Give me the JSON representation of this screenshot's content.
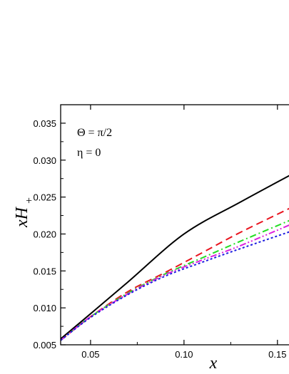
{
  "chart_data": {
    "type": "line",
    "xlabel_main": "x",
    "ylabel_main": "xH",
    "ylabel_sub": "+",
    "xlim": [
      0.034,
      0.16
    ],
    "ylim": [
      0.005,
      0.0375
    ],
    "x_ticks": [
      0.05,
      0.1,
      0.15
    ],
    "x_tick_labels": [
      "0.05",
      "0.10",
      "0.15"
    ],
    "y_ticks": [
      0.005,
      0.01,
      0.015,
      0.02,
      0.025,
      0.03,
      0.035
    ],
    "y_tick_labels": [
      "0.005",
      "0.010",
      "0.015",
      "0.020",
      "0.025",
      "0.030",
      "0.035"
    ],
    "annotations": [
      "Θ = π/2",
      "η = 0"
    ],
    "series": [
      {
        "color": "#000000",
        "dash": "solid",
        "x": [
          0.034,
          0.05,
          0.07,
          0.1,
          0.13,
          0.16
        ],
        "y": [
          0.0058,
          0.0092,
          0.0135,
          0.02,
          0.0243,
          0.0284
        ]
      },
      {
        "color": "#e8141e",
        "dash": "dash",
        "x": [
          0.034,
          0.05,
          0.07,
          0.09,
          0.11,
          0.13,
          0.16
        ],
        "y": [
          0.0056,
          0.0088,
          0.0122,
          0.0148,
          0.0175,
          0.0202,
          0.0239
        ]
      },
      {
        "color": "#22dd22",
        "dash": "dashdot",
        "x": [
          0.034,
          0.05,
          0.07,
          0.09,
          0.11,
          0.13,
          0.16
        ],
        "y": [
          0.0056,
          0.0088,
          0.012,
          0.0146,
          0.0168,
          0.019,
          0.0222
        ]
      },
      {
        "color": "#dd22dd",
        "dash": "dashdotdot",
        "x": [
          0.034,
          0.05,
          0.07,
          0.09,
          0.11,
          0.13,
          0.16
        ],
        "y": [
          0.0056,
          0.0088,
          0.0119,
          0.0145,
          0.0165,
          0.0184,
          0.0216
        ]
      },
      {
        "color": "#1c1ce0",
        "dash": "dot",
        "x": [
          0.034,
          0.05,
          0.07,
          0.09,
          0.11,
          0.13,
          0.16
        ],
        "y": [
          0.0056,
          0.0087,
          0.0118,
          0.0143,
          0.0162,
          0.018,
          0.0206
        ]
      }
    ]
  }
}
